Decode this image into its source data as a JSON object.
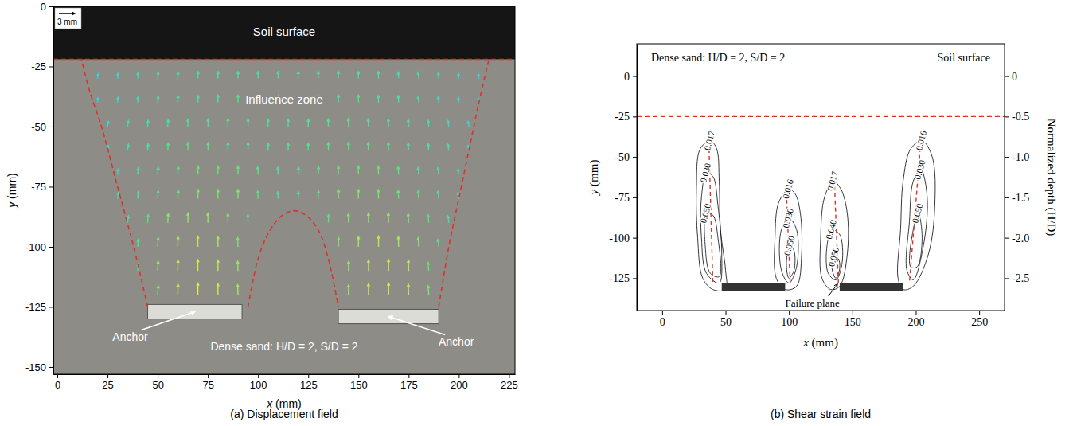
{
  "chart_data": [
    {
      "type": "vector_field",
      "title": "(a) Displacement field",
      "x_label": "x (mm)",
      "y_label": "y (mm)",
      "xlim": [
        -2,
        228
      ],
      "ylim": [
        -153,
        0
      ],
      "xticks": [
        0,
        25,
        50,
        75,
        100,
        125,
        150,
        175,
        200,
        225
      ],
      "yticks": [
        0,
        -25,
        -50,
        -75,
        -100,
        -125,
        -150
      ],
      "annotations": [
        "Soil surface",
        "Influence zone",
        "Dense sand: H/D = 2, S/D = 2"
      ],
      "scale_arrow": {
        "value": 3,
        "label": "3 mm"
      },
      "soil_surface": -22,
      "anchors": [
        {
          "label": "Anchor",
          "x": [
            45,
            92
          ],
          "y": [
            -130,
            -124
          ]
        },
        {
          "label": "Anchor",
          "x": [
            140,
            190
          ],
          "y": [
            -132,
            -126
          ]
        }
      ],
      "influence_zone": [
        {
          "x": [
            45,
            38,
            30,
            22,
            16,
            12
          ],
          "y": [
            -125,
            -100,
            -75,
            -50,
            -35,
            -22
          ]
        },
        {
          "x": [
            190,
            195,
            200,
            205,
            210,
            215
          ],
          "y": [
            -125,
            -100,
            -80,
            -60,
            -40,
            -22
          ]
        },
        {
          "x": [
            95,
            100,
            106,
            112,
            118,
            124,
            130,
            135,
            140
          ],
          "y": [
            -125,
            -105,
            -93,
            -87,
            -85,
            -87,
            -93,
            -105,
            -125
          ]
        }
      ],
      "vectors": [
        {
          "y": -30,
          "x": [
            20,
            30,
            40,
            50,
            60,
            70,
            80,
            90,
            100,
            110,
            120,
            130,
            140,
            150,
            160,
            170,
            180,
            190,
            200,
            210
          ],
          "dx": [
            0.1,
            0.1,
            0.1,
            0.1,
            0.05,
            0.05,
            0,
            0,
            0,
            0,
            0,
            0,
            0,
            0,
            -0.05,
            -0.05,
            -0.1,
            -0.1,
            -0.1,
            -0.1
          ],
          "dy": [
            0.9,
            1.0,
            1.1,
            1.2,
            1.2,
            1.3,
            1.3,
            1.3,
            1.3,
            1.3,
            1.3,
            1.3,
            1.3,
            1.3,
            1.3,
            1.2,
            1.2,
            1.1,
            1.0,
            0.9
          ]
        },
        {
          "y": -40,
          "x": [
            20,
            30,
            40,
            50,
            60,
            70,
            80,
            90,
            100,
            110,
            120,
            130,
            140,
            150,
            160,
            170,
            180,
            190,
            200,
            210
          ],
          "dx": [
            0.1,
            0.1,
            0.1,
            0.1,
            0.05,
            0.05,
            0,
            0,
            0,
            0,
            0,
            0,
            0,
            0,
            -0.05,
            -0.05,
            -0.1,
            -0.1,
            -0.1,
            -0.1
          ],
          "dy": [
            0.9,
            1.0,
            1.1,
            1.2,
            1.3,
            1.3,
            1.4,
            1.4,
            1.4,
            1.4,
            1.4,
            1.4,
            1.4,
            1.4,
            1.3,
            1.3,
            1.2,
            1.1,
            1.0,
            0.9
          ]
        },
        {
          "y": -50,
          "x": [
            25,
            35,
            45,
            55,
            65,
            75,
            85,
            95,
            105,
            115,
            125,
            135,
            145,
            155,
            165,
            175,
            185,
            195,
            205
          ],
          "dx": [
            0.15,
            0.15,
            0.1,
            0.1,
            0.05,
            0.05,
            0,
            0,
            0,
            0,
            0,
            0,
            0,
            -0.05,
            -0.05,
            -0.1,
            -0.1,
            -0.15,
            -0.15
          ],
          "dy": [
            1.0,
            1.1,
            1.2,
            1.3,
            1.4,
            1.4,
            1.5,
            1.4,
            1.4,
            1.4,
            1.4,
            1.4,
            1.5,
            1.4,
            1.4,
            1.3,
            1.2,
            1.1,
            1.0
          ]
        },
        {
          "y": -60,
          "x": [
            25,
            35,
            45,
            55,
            65,
            75,
            85,
            95,
            105,
            115,
            125,
            135,
            145,
            155,
            165,
            175,
            185,
            195,
            205
          ],
          "dx": [
            0.15,
            0.15,
            0.1,
            0.1,
            0.05,
            0.05,
            0,
            0,
            0,
            0,
            0,
            0,
            0,
            -0.05,
            -0.05,
            -0.1,
            -0.1,
            -0.15,
            -0.15
          ],
          "dy": [
            1.0,
            1.2,
            1.3,
            1.4,
            1.5,
            1.5,
            1.5,
            1.5,
            1.4,
            1.4,
            1.4,
            1.5,
            1.5,
            1.5,
            1.5,
            1.4,
            1.3,
            1.2,
            1.0
          ]
        },
        {
          "y": -70,
          "x": [
            30,
            40,
            50,
            60,
            70,
            80,
            90,
            100,
            110,
            120,
            130,
            140,
            150,
            160,
            170,
            180,
            190,
            200
          ],
          "dx": [
            0.15,
            0.15,
            0.1,
            0.1,
            0.05,
            0,
            0,
            -0.05,
            -0.05,
            0.05,
            0.05,
            0,
            0,
            -0.05,
            -0.1,
            -0.1,
            -0.15,
            -0.15
          ],
          "dy": [
            1.1,
            1.3,
            1.4,
            1.5,
            1.6,
            1.6,
            1.6,
            1.5,
            1.4,
            1.4,
            1.5,
            1.6,
            1.6,
            1.6,
            1.5,
            1.4,
            1.3,
            1.1
          ]
        },
        {
          "y": -80,
          "x": [
            30,
            40,
            50,
            60,
            70,
            80,
            90,
            100,
            110,
            120,
            130,
            140,
            150,
            160,
            170,
            180,
            190,
            200
          ],
          "dx": [
            0.15,
            0.15,
            0.1,
            0.1,
            0.05,
            0,
            0,
            -0.05,
            -0.05,
            0.05,
            0.05,
            0,
            0,
            -0.05,
            -0.1,
            -0.1,
            -0.15,
            -0.15
          ],
          "dy": [
            1.2,
            1.4,
            1.5,
            1.6,
            1.7,
            1.7,
            1.7,
            1.5,
            1.3,
            1.3,
            1.5,
            1.7,
            1.7,
            1.7,
            1.6,
            1.5,
            1.4,
            1.2
          ]
        },
        {
          "y": -90,
          "x": [
            35,
            45,
            55,
            65,
            75,
            85,
            95,
            135,
            145,
            155,
            165,
            175,
            185,
            195
          ],
          "dx": [
            0.15,
            0.1,
            0.1,
            0.05,
            0,
            0,
            -0.05,
            0.05,
            0,
            0,
            -0.05,
            -0.1,
            -0.1,
            -0.15
          ],
          "dy": [
            1.3,
            1.5,
            1.7,
            1.8,
            1.8,
            1.7,
            1.5,
            1.5,
            1.7,
            1.8,
            1.8,
            1.7,
            1.5,
            1.3
          ]
        },
        {
          "y": -100,
          "x": [
            40,
            50,
            60,
            70,
            80,
            90,
            140,
            150,
            160,
            170,
            180,
            190
          ],
          "dx": [
            0.15,
            0.1,
            0.05,
            0,
            0,
            -0.05,
            0.05,
            0,
            0,
            -0.05,
            -0.1,
            -0.15
          ],
          "dy": [
            1.4,
            1.7,
            1.9,
            2.0,
            1.9,
            1.7,
            1.7,
            1.9,
            2.0,
            1.9,
            1.7,
            1.4
          ]
        },
        {
          "y": -110,
          "x": [
            40,
            50,
            60,
            70,
            80,
            90,
            145,
            155,
            165,
            175,
            185
          ],
          "dx": [
            0.1,
            0.1,
            0.05,
            0,
            0,
            -0.05,
            0.05,
            0,
            0,
            -0.05,
            -0.1
          ],
          "dy": [
            1.4,
            1.8,
            2.0,
            2.1,
            2.0,
            1.8,
            1.8,
            2.0,
            2.1,
            2.0,
            1.6
          ]
        },
        {
          "y": -120,
          "x": [
            50,
            60,
            70,
            80,
            90,
            145,
            155,
            165,
            175,
            185
          ],
          "dx": [
            0.1,
            0.05,
            0,
            0,
            -0.05,
            0.05,
            0,
            0,
            -0.05,
            -0.1
          ],
          "dy": [
            1.7,
            2.0,
            2.2,
            2.1,
            1.9,
            1.9,
            2.1,
            2.2,
            2.0,
            1.7
          ]
        }
      ]
    },
    {
      "type": "contour",
      "title": "(b) Shear strain field",
      "x_label": "x (mm)",
      "y_label": "y (mm)",
      "y2_label": "Normalized depth (H/D)",
      "xlim": [
        -20,
        270
      ],
      "ylim": [
        -145,
        20
      ],
      "y2lim": [
        -2.9,
        0.4
      ],
      "xticks": [
        0,
        50,
        100,
        150,
        200,
        250
      ],
      "yticks": [
        0,
        -25,
        -50,
        -75,
        -100,
        -125
      ],
      "y2ticks": [
        0,
        -0.5,
        {
          "value": -1,
          "label": "-1.0"
        },
        -1.5,
        {
          "value": -2,
          "label": "-2.0"
        },
        -2.5
      ],
      "annotations": [
        "Dense sand: H/D = 2, S/D = 2",
        "Soil surface"
      ],
      "failure_plane_label": "Failure plane",
      "soil_surface": -25,
      "anchors": [
        {
          "x": [
            47,
            97
          ],
          "y": [
            -133,
            -128
          ]
        },
        {
          "x": [
            140,
            190
          ],
          "y": [
            -133,
            -128
          ]
        }
      ],
      "contours": [
        {
          "label": "0.017",
          "x": [
            38,
            30,
            27,
            28,
            32,
            40,
            50,
            50,
            46,
            45,
            43
          ],
          "y": [
            -40,
            -45,
            -70,
            -100,
            -125,
            -132,
            -132,
            -120,
            -95,
            -65,
            -45
          ]
        },
        {
          "label": "0.030",
          "x": [
            35,
            31,
            31,
            35,
            45,
            47,
            44,
            40
          ],
          "y": [
            -60,
            -75,
            -100,
            -122,
            -128,
            -110,
            -80,
            -62
          ]
        },
        {
          "label": "0.050",
          "x": [
            35,
            34,
            38,
            45,
            44,
            40
          ],
          "y": [
            -85,
            -105,
            -122,
            -124,
            -100,
            -86
          ]
        },
        {
          "label": "0.016",
          "x": [
            100,
            92,
            89,
            90,
            97,
            106,
            110,
            109,
            105
          ],
          "y": [
            -70,
            -78,
            -100,
            -125,
            -132,
            -130,
            -110,
            -85,
            -73
          ]
        },
        {
          "label": "0.030",
          "x": [
            100,
            94,
            94,
            100,
            106,
            106
          ],
          "y": [
            -88,
            -95,
            -120,
            -128,
            -118,
            -95
          ]
        },
        {
          "label": "0.050",
          "x": [
            101,
            98,
            100,
            104,
            104
          ],
          "y": [
            -105,
            -115,
            -125,
            -120,
            -108
          ]
        },
        {
          "label": "0.017",
          "x": [
            135,
            128,
            125,
            126,
            133,
            140,
            146,
            146,
            141
          ],
          "y": [
            -65,
            -75,
            -100,
            -125,
            -132,
            -130,
            -110,
            -85,
            -70
          ]
        },
        {
          "label": "0.040",
          "x": [
            134,
            130,
            131,
            137,
            142,
            140
          ],
          "y": [
            -95,
            -105,
            -122,
            -126,
            -115,
            -98
          ]
        },
        {
          "label": "0.050",
          "x": [
            136,
            134,
            137,
            140,
            139
          ],
          "y": [
            -112,
            -119,
            -125,
            -119,
            -113
          ]
        },
        {
          "label": "0.016",
          "x": [
            205,
            196,
            190,
            188,
            186,
            190,
            198,
            210,
            215,
            213
          ],
          "y": [
            -40,
            -45,
            -65,
            -95,
            -125,
            -132,
            -130,
            -110,
            -80,
            -50
          ]
        },
        {
          "label": "0.030",
          "x": [
            204,
            198,
            195,
            193,
            198,
            206,
            209
          ],
          "y": [
            -58,
            -65,
            -90,
            -120,
            -126,
            -105,
            -75
          ]
        },
        {
          "label": "0.050",
          "x": [
            202,
            198,
            196,
            201,
            205
          ],
          "y": [
            -85,
            -95,
            -118,
            -118,
            -100
          ]
        }
      ],
      "failure_planes": [
        {
          "x": [
            37,
            40
          ],
          "y": [
            -45,
            -128
          ]
        },
        {
          "x": [
            98,
            101
          ],
          "y": [
            -72,
            -128
          ]
        },
        {
          "x": [
            136,
            139
          ],
          "y": [
            -68,
            -128
          ]
        },
        {
          "x": [
            204,
            195
          ],
          "y": [
            -40,
            -128
          ]
        }
      ]
    }
  ]
}
